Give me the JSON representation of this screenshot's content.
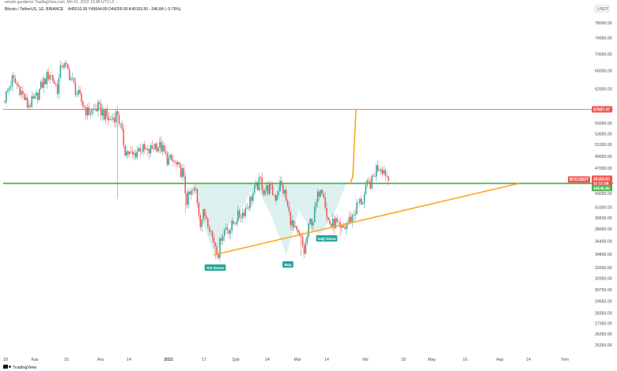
{
  "window_title": "emrah.gundemir TradingView.com, Mrt 01, 2022 13:48 UTC+3 ...",
  "header": {
    "symbol": "Bitcoin / TetherUS, 1G, BINANCE",
    "ohlc": "A45510.39 Y45644.89 D44200.00 K45163.50 −346.84 (−0.76%)"
  },
  "currency_badge": "USDT",
  "brand": "TradingView",
  "colors": {
    "up": "#26a69a",
    "down": "#ef5350",
    "neckline": "#4caf50",
    "trend": "#f9a825",
    "resistance": "#ef5350",
    "pattern_fill": "#b2dfdb"
  },
  "chart_data": {
    "type": "candlestick",
    "title": "Bitcoin / TetherUS, 1G, BINANCE",
    "ylabels": [
      "78000.00",
      "74000.00",
      "70000.00",
      "66000.00",
      "62000.00",
      "58000.00",
      "55000.00",
      "53000.00",
      "51000.00",
      "49000.00",
      "47000.00",
      "45000.00",
      "43000.00",
      "41000.00",
      "39500.00",
      "38000.00",
      "36400.00",
      "34800.00",
      "33200.00",
      "32000.00",
      "30750.00",
      "29550.00",
      "28350.00",
      "27350.00",
      "26350.00",
      "25350.00"
    ],
    "xlabels": [
      "18",
      "Kas",
      "15",
      "Ara",
      "14",
      "2022",
      "17",
      "Şub",
      "14",
      "Mar",
      "14",
      "Nis",
      "18",
      "May",
      "16",
      "Haz",
      "14",
      "Tem"
    ],
    "ylim": [
      25350,
      80000
    ],
    "yscale": "log",
    "price_tags": [
      {
        "name": "resistance",
        "value": "57687.47"
      },
      {
        "name": "last_price",
        "value": "45163.50",
        "symbol": "BTCUSDT",
        "countdown": "11:11:39"
      },
      {
        "name": "neckline",
        "value": "44546.86"
      }
    ],
    "lines": {
      "resistance": 57687.47,
      "neckline": 44546.86
    },
    "pattern_labels": [
      "Sol Omuz",
      "Baş",
      "Sağ Omuz"
    ],
    "close_path": [
      [
        0,
        60000
      ],
      [
        5,
        64000
      ],
      [
        10,
        62000
      ],
      [
        15,
        58500
      ],
      [
        20,
        59500
      ],
      [
        25,
        63000
      ],
      [
        30,
        65500
      ],
      [
        35,
        62000
      ],
      [
        38,
        68000
      ],
      [
        42,
        66000
      ],
      [
        48,
        61000
      ],
      [
        55,
        57000
      ],
      [
        62,
        58000
      ],
      [
        70,
        55500
      ],
      [
        75,
        57000
      ],
      [
        80,
        50000
      ],
      [
        85,
        49000
      ],
      [
        90,
        50500
      ],
      [
        95,
        49500
      ],
      [
        100,
        51000
      ],
      [
        104,
        50500
      ],
      [
        108,
        48500
      ],
      [
        112,
        48000
      ],
      [
        115,
        47000
      ],
      [
        118,
        46300
      ],
      [
        121,
        42000
      ],
      [
        124,
        43000
      ],
      [
        127,
        43500
      ],
      [
        130,
        39000
      ],
      [
        132,
        40000
      ],
      [
        134,
        39800
      ],
      [
        136,
        38500
      ],
      [
        138,
        36800
      ],
      [
        140,
        36000
      ],
      [
        142,
        35000
      ],
      [
        144,
        37200
      ],
      [
        147,
        38200
      ],
      [
        150,
        38000
      ],
      [
        154,
        39500
      ],
      [
        158,
        40200
      ],
      [
        162,
        41500
      ],
      [
        166,
        43500
      ],
      [
        170,
        45000
      ],
      [
        172,
        43500
      ],
      [
        176,
        43800
      ],
      [
        180,
        42500
      ],
      [
        183,
        44500
      ],
      [
        186,
        43000
      ],
      [
        189,
        40000
      ],
      [
        192,
        38000
      ],
      [
        195,
        37000
      ],
      [
        197,
        36500
      ],
      [
        199,
        35000
      ],
      [
        201,
        37000
      ],
      [
        203,
        39000
      ],
      [
        205,
        39300
      ],
      [
        208,
        42500
      ],
      [
        210,
        44300
      ],
      [
        212,
        43300
      ],
      [
        214,
        39500
      ],
      [
        217,
        38500
      ],
      [
        220,
        38900
      ],
      [
        223,
        37700
      ],
      [
        226,
        38200
      ],
      [
        229,
        39200
      ],
      [
        232,
        40000
      ],
      [
        235,
        41600
      ],
      [
        238,
        42000
      ],
      [
        241,
        44200
      ],
      [
        244,
        44800
      ],
      [
        247,
        47000
      ],
      [
        250,
        47300
      ],
      [
        253,
        46300
      ],
      [
        255,
        45163.5
      ]
    ]
  }
}
